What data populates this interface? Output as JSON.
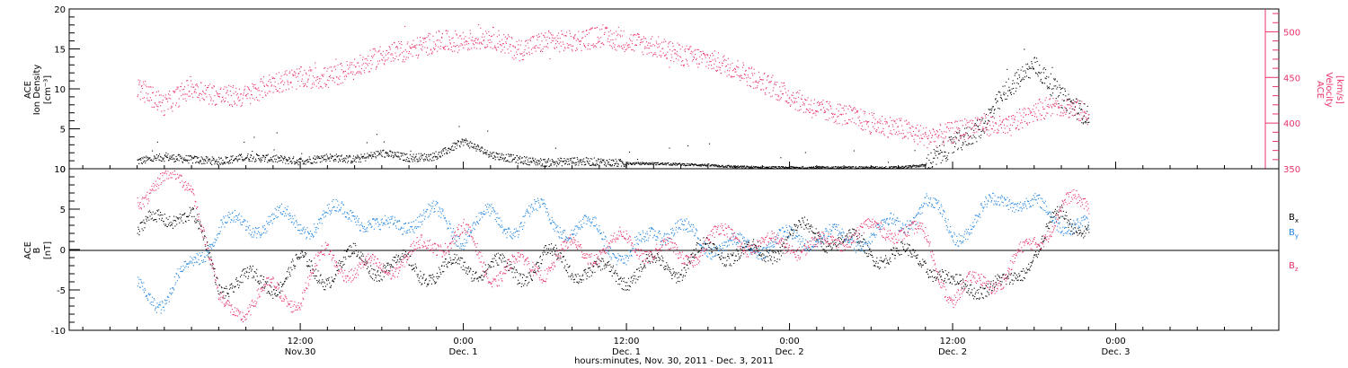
{
  "chart_data": [
    {
      "type": "scatter",
      "panel": "plasma",
      "ylabel_left": [
        "ACE",
        "Ion Density",
        "[cm⁻³]"
      ],
      "ylabel_right": [
        "ACE",
        "Velocity",
        "[km/s]"
      ],
      "ylim_left": [
        0,
        20
      ],
      "ylim_right": [
        350,
        525
      ],
      "yticks_left": [
        "0",
        "5",
        "10",
        "15",
        "20"
      ],
      "yticks_right": [
        "350",
        "400",
        "450",
        "500"
      ],
      "series": [
        {
          "name": "density",
          "color": "#000000",
          "axis": "left",
          "t": [
            0,
            2,
            4,
            6,
            8,
            10,
            12,
            14,
            16,
            18,
            20,
            22,
            24,
            26,
            28,
            30,
            32,
            34,
            36,
            38,
            40,
            42,
            44,
            46,
            48,
            50,
            52,
            54,
            55,
            56,
            58,
            60,
            62,
            64,
            66,
            68,
            70
          ],
          "values": [
            1.0,
            1.5,
            1.2,
            1.0,
            1.5,
            1.3,
            1.0,
            1.5,
            1.2,
            2.0,
            1.4,
            1.6,
            3.5,
            1.8,
            1.2,
            0.8,
            1.0,
            0.9,
            0.7,
            0.7,
            0.6,
            0.5,
            0.3,
            0.2,
            0.2,
            0.2,
            0.2,
            0.2,
            0.2,
            0.2,
            0.5,
            3.0,
            5.0,
            10.0,
            13.0,
            9.0,
            6.5
          ]
        },
        {
          "name": "velocity",
          "color": "#e8336a",
          "axis": "right",
          "t": [
            0,
            2,
            4,
            6,
            8,
            10,
            12,
            14,
            16,
            18,
            20,
            22,
            24,
            26,
            28,
            30,
            32,
            34,
            36,
            38,
            40,
            42,
            44,
            46,
            48,
            50,
            52,
            54,
            56,
            58,
            60,
            62,
            64,
            66,
            68,
            70
          ],
          "values": [
            440,
            420,
            440,
            430,
            430,
            445,
            450,
            450,
            460,
            475,
            480,
            490,
            490,
            495,
            480,
            490,
            490,
            495,
            490,
            485,
            475,
            470,
            460,
            445,
            430,
            415,
            410,
            400,
            395,
            385,
            390,
            400,
            395,
            415,
            420,
            410
          ]
        }
      ]
    },
    {
      "type": "scatter",
      "panel": "magnetic",
      "ylabel_left": [
        "ACE",
        "B",
        "[nT]"
      ],
      "ylim": [
        -10,
        10
      ],
      "yticks": [
        "-10",
        "-5",
        "0",
        "5",
        "10"
      ],
      "legend": [
        "B",
        "B",
        "B"
      ],
      "legend_sub": [
        "x",
        "y",
        "z"
      ],
      "legend_placement": "right",
      "series": [
        {
          "name": "Bx",
          "color": "#000000",
          "t": [
            0,
            2,
            3,
            4,
            6,
            8,
            10,
            12,
            14,
            16,
            18,
            20,
            22,
            24,
            26,
            28,
            30,
            32,
            34,
            36,
            38,
            40,
            42,
            44,
            46,
            48,
            50,
            52,
            54,
            56,
            58,
            60,
            62,
            64,
            66,
            68,
            70
          ],
          "values": [
            2,
            4,
            5,
            4,
            -4,
            -4,
            -4,
            -2,
            -3,
            -1,
            -2,
            -2,
            -3,
            -2,
            -2,
            -3,
            -1,
            -2,
            -3,
            -3,
            -2,
            -2,
            0,
            0,
            -1,
            2,
            2,
            1,
            0,
            -1,
            -1,
            -5,
            -4,
            -5,
            0,
            4,
            3
          ]
        },
        {
          "name": "By",
          "color": "#1f84e0",
          "t": [
            0,
            2,
            4,
            6,
            8,
            10,
            12,
            14,
            16,
            18,
            20,
            22,
            24,
            26,
            28,
            30,
            32,
            34,
            36,
            38,
            40,
            42,
            44,
            46,
            48,
            50,
            52,
            54,
            56,
            58,
            60,
            62,
            64,
            66,
            68,
            70
          ],
          "values": [
            -5,
            -6,
            -2,
            3,
            3,
            4,
            3,
            4,
            5,
            2,
            4,
            4,
            2,
            4,
            3,
            5,
            2,
            3,
            -2,
            3,
            2,
            1,
            0,
            1,
            1,
            2,
            1,
            2,
            3,
            6,
            2,
            4,
            7,
            5,
            4,
            2
          ]
        },
        {
          "name": "Bz",
          "color": "#e8336a",
          "t": [
            0,
            2,
            3,
            4,
            6,
            8,
            10,
            12,
            14,
            16,
            18,
            20,
            22,
            24,
            26,
            28,
            30,
            32,
            34,
            36,
            38,
            40,
            42,
            44,
            46,
            48,
            50,
            52,
            54,
            56,
            58,
            60,
            62,
            64,
            66,
            68,
            70
          ],
          "values": [
            7,
            8,
            9,
            9,
            -7,
            -7,
            -5,
            -6,
            0,
            -3,
            -2,
            -1,
            1,
            2,
            -3,
            -2,
            -2,
            0,
            0,
            1,
            0,
            -1,
            1,
            2,
            0,
            1,
            0,
            2,
            2,
            3,
            1,
            -6,
            -4,
            -3,
            1,
            5,
            6
          ]
        }
      ]
    }
  ],
  "x_axis": {
    "range_hours": [
      -5,
      84
    ],
    "ticks": [
      {
        "hour": 12,
        "label": "12:00",
        "sublabel": "Nov.30"
      },
      {
        "hour": 24,
        "label": "0:00",
        "sublabel": "Dec. 1"
      },
      {
        "hour": 36,
        "label": "12:00",
        "sublabel": "Dec. 1"
      },
      {
        "hour": 48,
        "label": "0:00",
        "sublabel": "Dec. 2"
      },
      {
        "hour": 60,
        "label": "12:00",
        "sublabel": "Dec. 2"
      },
      {
        "hour": 72,
        "label": "0:00",
        "sublabel": "Dec. 3"
      }
    ],
    "xlabel": "hours:minutes, Nov. 30, 2011 - Dec. 3, 2011"
  }
}
